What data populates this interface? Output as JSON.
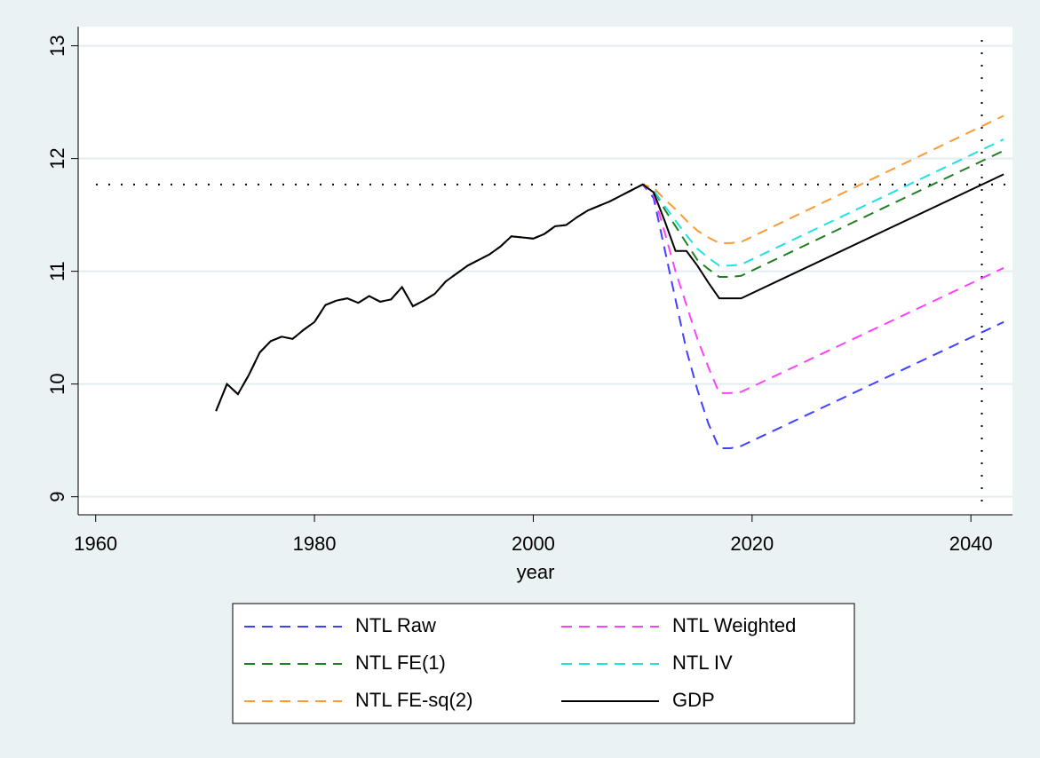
{
  "chart_data": {
    "type": "line",
    "x_label": "year",
    "x": [
      1971,
      1972,
      1973,
      1974,
      1975,
      1976,
      1977,
      1978,
      1979,
      1980,
      1981,
      1982,
      1983,
      1984,
      1985,
      1986,
      1987,
      1988,
      1989,
      1990,
      1991,
      1992,
      1993,
      1994,
      1995,
      1996,
      1997,
      1998,
      1999,
      2000,
      2001,
      2002,
      2003,
      2004,
      2005,
      2006,
      2007,
      2008,
      2009,
      2010,
      2011,
      2012,
      2013,
      2014,
      2015,
      2016,
      2017,
      2018,
      2019,
      2043
    ],
    "series": [
      {
        "name": "NTL Raw",
        "color": "#4040ff",
        "style": "dashed",
        "values": [
          9.76,
          10.0,
          9.91,
          10.08,
          10.28,
          10.38,
          10.42,
          10.4,
          10.48,
          10.55,
          10.7,
          10.74,
          10.76,
          10.72,
          10.78,
          10.73,
          10.75,
          10.86,
          10.69,
          10.74,
          10.8,
          10.91,
          10.98,
          11.05,
          11.1,
          11.15,
          11.22,
          11.31,
          11.3,
          11.29,
          11.33,
          11.4,
          11.41,
          11.48,
          11.54,
          11.58,
          11.62,
          11.67,
          11.72,
          11.77,
          11.65,
          11.2,
          10.75,
          10.3,
          9.95,
          9.65,
          9.43,
          9.43,
          9.45,
          10.55
        ]
      },
      {
        "name": "NTL Weighted",
        "color": "#ff40ff",
        "style": "dashed",
        "values": [
          9.76,
          10.0,
          9.91,
          10.08,
          10.28,
          10.38,
          10.42,
          10.4,
          10.48,
          10.55,
          10.7,
          10.74,
          10.76,
          10.72,
          10.78,
          10.73,
          10.75,
          10.86,
          10.69,
          10.74,
          10.8,
          10.91,
          10.98,
          11.05,
          11.1,
          11.15,
          11.22,
          11.31,
          11.3,
          11.29,
          11.33,
          11.4,
          11.41,
          11.48,
          11.54,
          11.58,
          11.62,
          11.67,
          11.72,
          11.77,
          11.68,
          11.35,
          11.0,
          10.7,
          10.4,
          10.15,
          9.92,
          9.92,
          9.93,
          11.03
        ]
      },
      {
        "name": "NTL FE(1)",
        "color": "#208020",
        "style": "dashed",
        "values": [
          9.76,
          10.0,
          9.91,
          10.08,
          10.28,
          10.38,
          10.42,
          10.4,
          10.48,
          10.55,
          10.7,
          10.74,
          10.76,
          10.72,
          10.78,
          10.73,
          10.75,
          10.86,
          10.69,
          10.74,
          10.8,
          10.91,
          10.98,
          11.05,
          11.1,
          11.15,
          11.22,
          11.31,
          11.3,
          11.29,
          11.33,
          11.4,
          11.41,
          11.48,
          11.54,
          11.58,
          11.62,
          11.67,
          11.72,
          11.77,
          11.72,
          11.55,
          11.4,
          11.25,
          11.1,
          11.02,
          10.95,
          10.95,
          10.96,
          12.07
        ]
      },
      {
        "name": "NTL IV",
        "color": "#20e0e0",
        "style": "dashed",
        "values": [
          9.76,
          10.0,
          9.91,
          10.08,
          10.28,
          10.38,
          10.42,
          10.4,
          10.48,
          10.55,
          10.7,
          10.74,
          10.76,
          10.72,
          10.78,
          10.73,
          10.75,
          10.86,
          10.69,
          10.74,
          10.8,
          10.91,
          10.98,
          11.05,
          11.1,
          11.15,
          11.22,
          11.31,
          11.3,
          11.29,
          11.33,
          11.4,
          11.41,
          11.48,
          11.54,
          11.58,
          11.62,
          11.67,
          11.72,
          11.77,
          11.72,
          11.58,
          11.45,
          11.32,
          11.2,
          11.12,
          11.05,
          11.05,
          11.06,
          12.17
        ]
      },
      {
        "name": "NTL FE-sq(2)",
        "color": "#ff9933",
        "style": "dashed",
        "values": [
          9.76,
          10.0,
          9.91,
          10.08,
          10.28,
          10.38,
          10.42,
          10.4,
          10.48,
          10.55,
          10.7,
          10.74,
          10.76,
          10.72,
          10.78,
          10.73,
          10.75,
          10.86,
          10.69,
          10.74,
          10.8,
          10.91,
          10.98,
          11.05,
          11.1,
          11.15,
          11.22,
          11.31,
          11.3,
          11.29,
          11.33,
          11.4,
          11.41,
          11.48,
          11.54,
          11.58,
          11.62,
          11.67,
          11.72,
          11.77,
          11.74,
          11.64,
          11.55,
          11.45,
          11.36,
          11.3,
          11.25,
          11.25,
          11.26,
          12.38
        ]
      },
      {
        "name": "GDP",
        "color": "#000000",
        "style": "solid",
        "values": [
          9.76,
          10.0,
          9.91,
          10.08,
          10.28,
          10.38,
          10.42,
          10.4,
          10.48,
          10.55,
          10.7,
          10.74,
          10.76,
          10.72,
          10.78,
          10.73,
          10.75,
          10.86,
          10.69,
          10.74,
          10.8,
          10.91,
          10.98,
          11.05,
          11.1,
          11.15,
          11.22,
          11.31,
          11.3,
          11.29,
          11.33,
          11.4,
          11.41,
          11.48,
          11.54,
          11.58,
          11.62,
          11.67,
          11.72,
          11.77,
          11.7,
          11.45,
          11.18,
          11.18,
          11.05,
          10.9,
          10.76,
          10.76,
          10.76,
          11.86
        ]
      }
    ],
    "xlim": [
      1958.4,
      2043.8
    ],
    "xticks": [
      1960,
      1980,
      2000,
      2020,
      2040
    ],
    "ylim": [
      8.84,
      13.17
    ],
    "yticks": [
      9,
      10,
      11,
      12,
      13
    ],
    "yline": 11.77,
    "xline": 2041,
    "grid": true,
    "legend": "bottom",
    "legend_cols": 2
  }
}
